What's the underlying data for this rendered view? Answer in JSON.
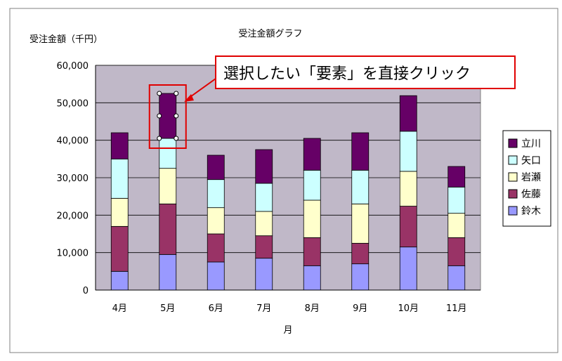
{
  "chart_data": {
    "type": "bar",
    "stacked": true,
    "title": "受注金額グラフ",
    "ylabel": "受注金額（千円）",
    "xlabel": "月",
    "ylim": [
      0,
      60000
    ],
    "yticks": [
      "0",
      "10,000",
      "20,000",
      "30,000",
      "40,000",
      "50,000",
      "60,000"
    ],
    "categories": [
      "4月",
      "5月",
      "6月",
      "7月",
      "8月",
      "9月",
      "10月",
      "11月"
    ],
    "series": [
      {
        "name": "鈴木",
        "color": "#9999ff",
        "values": [
          5000,
          9500,
          7500,
          8500,
          6500,
          7000,
          11500,
          6500
        ]
      },
      {
        "name": "佐藤",
        "color": "#993366",
        "values": [
          12000,
          13500,
          7500,
          6000,
          7500,
          5500,
          10900,
          7500
        ]
      },
      {
        "name": "岩瀬",
        "color": "#ffffcc",
        "values": [
          7500,
          9500,
          7000,
          6500,
          10000,
          10500,
          9300,
          6500
        ]
      },
      {
        "name": "矢口",
        "color": "#ccffff",
        "values": [
          10500,
          8000,
          7500,
          7500,
          8000,
          9000,
          10700,
          7000
        ]
      },
      {
        "name": "立川",
        "color": "#660066",
        "values": [
          7000,
          12000,
          6500,
          9000,
          8500,
          10000,
          9500,
          5500
        ]
      }
    ],
    "legend_position": "right",
    "grid": true,
    "plot_background": "#c0b8c8"
  },
  "callout": {
    "text": "選択したい「要素」を直接クリック",
    "border_color": "#e00000"
  }
}
